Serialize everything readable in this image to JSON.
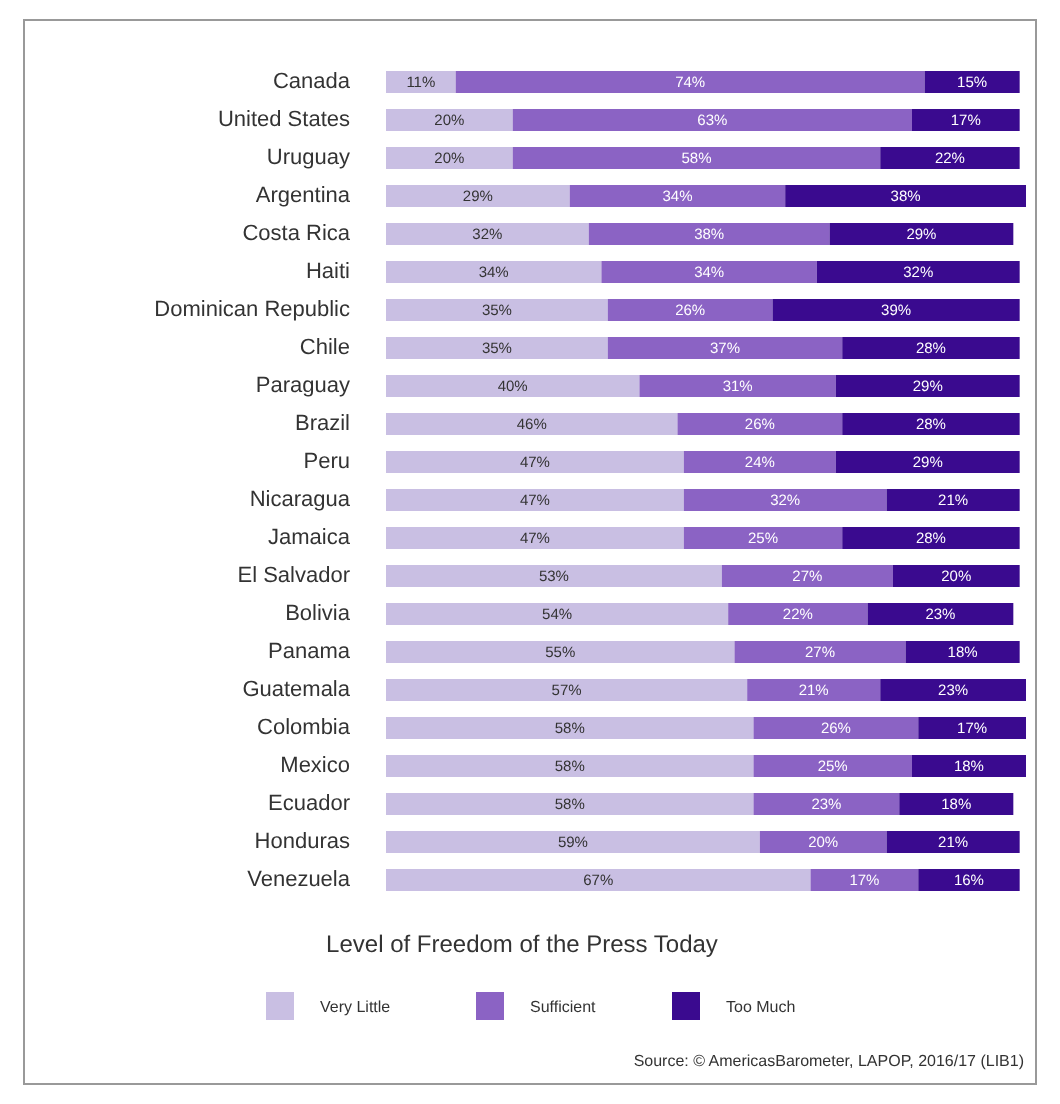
{
  "chart_data": {
    "type": "bar",
    "orientation": "horizontal",
    "stacked": true,
    "tick_labels": "y",
    "legend": "bottom",
    "legend_title": "Level of Freedom of the Press Today",
    "categories": [
      "Canada",
      "United States",
      "Uruguay",
      "Argentina",
      "Costa Rica",
      "Haiti",
      "Dominican Republic",
      "Chile",
      "Paraguay",
      "Brazil",
      "Peru",
      "Nicaragua",
      "Jamaica",
      "El Salvador",
      "Bolivia",
      "Panama",
      "Guatemala",
      "Colombia",
      "Mexico",
      "Ecuador",
      "Honduras",
      "Venezuela"
    ],
    "series": [
      {
        "name": "Very Little",
        "color": "#c9bfe3",
        "values": [
          11,
          20,
          20,
          29,
          32,
          34,
          35,
          35,
          40,
          46,
          47,
          47,
          47,
          53,
          54,
          55,
          57,
          58,
          58,
          58,
          59,
          67
        ],
        "value_labels": [
          "11%",
          "20%",
          "20%",
          "29%",
          "32%",
          "34%",
          "35%",
          "35%",
          "40%",
          "46%",
          "47%",
          "47%",
          "47%",
          "53%",
          "54%",
          "55%",
          "57%",
          "58%",
          "58%",
          "58%",
          "59%",
          "67%"
        ]
      },
      {
        "name": "Sufficient",
        "color": "#8b63c4",
        "values": [
          74,
          63,
          58,
          34,
          38,
          34,
          26,
          37,
          31,
          26,
          24,
          32,
          25,
          27,
          22,
          27,
          21,
          26,
          25,
          23,
          20,
          17
        ],
        "value_labels": [
          "74%",
          "63%",
          "58%",
          "34%",
          "38%",
          "34%",
          "26%",
          "37%",
          "31%",
          "26%",
          "24%",
          "32%",
          "25%",
          "27%",
          "22%",
          "27%",
          "21%",
          "26%",
          "25%",
          "23%",
          "20%",
          "17%"
        ]
      },
      {
        "name": "Too Much",
        "color": "#3a0a8f",
        "values": [
          15,
          17,
          22,
          38,
          29,
          32,
          39,
          28,
          29,
          28,
          29,
          21,
          28,
          20,
          23,
          18,
          23,
          17,
          18,
          18,
          21,
          16
        ],
        "value_labels": [
          "15%",
          "17%",
          "22%",
          "38%",
          "29%",
          "32%",
          "39%",
          "28%",
          "29%",
          "28%",
          "29%",
          "21%",
          "28%",
          "20%",
          "23%",
          "18%",
          "23%",
          "17%",
          "18%",
          "18%",
          "21%",
          "16%"
        ]
      }
    ],
    "annotations": [
      "Source: © AmericasBarometer, LAPOP, 2016/17 (LIB1)"
    ]
  }
}
